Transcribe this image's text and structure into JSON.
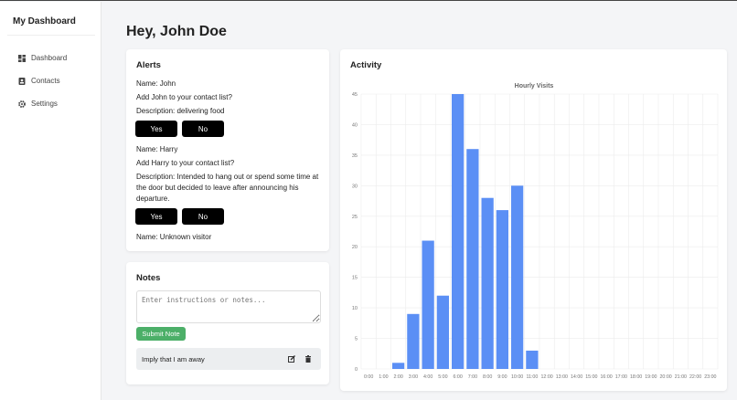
{
  "sidebar": {
    "brand": "My Dashboard",
    "items": [
      {
        "label": "Dashboard",
        "icon": "dashboard-icon"
      },
      {
        "label": "Contacts",
        "icon": "contacts-icon"
      },
      {
        "label": "Settings",
        "icon": "gear-icon"
      }
    ]
  },
  "header": {
    "title": "Hey, John Doe"
  },
  "alerts": {
    "title": "Alerts",
    "items": [
      {
        "name": "Name: John",
        "question": "Add John to your contact list?",
        "description": "Description: delivering food",
        "yes": "Yes",
        "no": "No"
      },
      {
        "name": "Name: Harry",
        "question": "Add Harry to your contact list?",
        "description": "Description: Intended to hang out or spend some time at the door but decided to leave after announcing his departure.",
        "yes": "Yes",
        "no": "No"
      },
      {
        "name": "Name: Unknown visitor"
      }
    ]
  },
  "notes": {
    "title": "Notes",
    "placeholder": "Enter instructions or notes...",
    "submit": "Submit Note",
    "items": [
      {
        "text": "Imply that I am away"
      }
    ]
  },
  "activity": {
    "title": "Activity"
  },
  "chart_data": {
    "type": "bar",
    "title": "Hourly Visits",
    "categories": [
      "0:00",
      "1:00",
      "2:00",
      "3:00",
      "4:00",
      "5:00",
      "6:00",
      "7:00",
      "8:00",
      "9:00",
      "10:00",
      "11:00",
      "12:00",
      "13:00",
      "14:00",
      "15:00",
      "16:00",
      "17:00",
      "18:00",
      "19:00",
      "20:00",
      "21:00",
      "22:00",
      "23:00"
    ],
    "values": [
      0,
      0,
      1,
      9,
      21,
      12,
      45,
      36,
      28,
      26,
      30,
      3,
      0,
      0,
      0,
      0,
      0,
      0,
      0,
      0,
      0,
      0,
      0,
      0
    ],
    "ylim": [
      0,
      45
    ],
    "yticks": [
      0,
      5,
      10,
      15,
      20,
      25,
      30,
      35,
      40,
      45
    ],
    "grid": true,
    "color": "#5b8ff5"
  }
}
